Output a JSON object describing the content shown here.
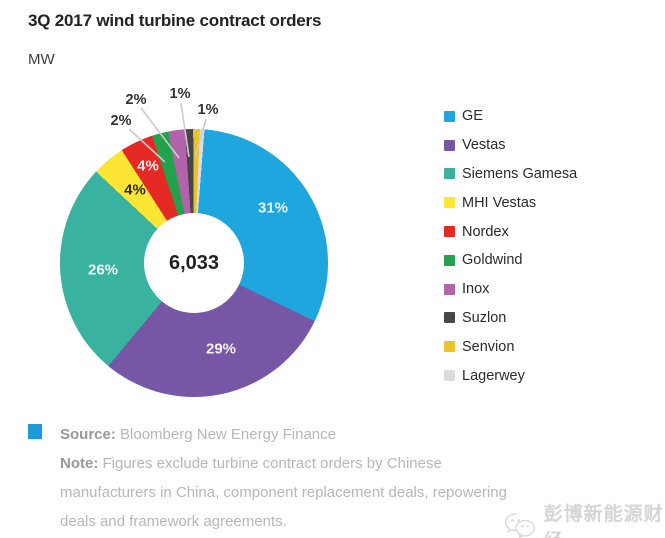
{
  "header": {
    "title": "3Q 2017 wind turbine contract orders",
    "unit": "MW"
  },
  "chart_data": {
    "type": "pie",
    "subtype": "donut",
    "title": "3Q 2017 wind turbine contract orders",
    "unit": "MW",
    "center_total": "6,033",
    "total_mw": 6033,
    "legend_position": "right",
    "start_angle_deg": 4.5,
    "series": [
      {
        "name": "GE",
        "percent_label": "31%",
        "value_pct": 31,
        "color": "#1FA6DE",
        "label_style": "inside-light"
      },
      {
        "name": "Vestas",
        "percent_label": "29%",
        "value_pct": 29,
        "color": "#7757A5",
        "label_style": "inside-light"
      },
      {
        "name": "Siemens Gamesa",
        "percent_label": "26%",
        "value_pct": 26,
        "color": "#39B2A0",
        "label_style": "inside-light"
      },
      {
        "name": "MHI Vestas",
        "percent_label": "4%",
        "value_pct": 4,
        "color": "#FDE534",
        "label_style": "inside-dark"
      },
      {
        "name": "Nordex",
        "percent_label": "4%",
        "value_pct": 4,
        "color": "#E52A25",
        "label_style": "inside-light"
      },
      {
        "name": "Goldwind",
        "percent_label": "2%",
        "value_pct": 2,
        "color": "#22A24C",
        "label_style": "outside"
      },
      {
        "name": "Inox",
        "percent_label": "2%",
        "value_pct": 2,
        "color": "#B263AC",
        "label_style": "outside"
      },
      {
        "name": "Suzlon",
        "percent_label": "1%",
        "value_pct": 1,
        "color": "#47474A",
        "label_style": "outside"
      },
      {
        "name": "Senvion",
        "percent_label": "1%",
        "value_pct": 0.8,
        "color": "#E9C327",
        "label_style": "outside"
      },
      {
        "name": "Lagerwey",
        "percent_label": "",
        "value_pct": 0.55,
        "color": "#DCDCDC",
        "label_style": "none"
      }
    ]
  },
  "footer": {
    "swatch_color": "#1B9CD8",
    "source_label": "Source:",
    "source_text": "Bloomberg New Energy Finance",
    "note_label": "Note:",
    "note_lines": [
      "Figures exclude turbine contract orders by Chinese",
      "manufacturers in China, component replacement deals, repowering",
      "deals and framework agreements."
    ]
  },
  "watermark": {
    "text": "彭博新能源财经"
  }
}
